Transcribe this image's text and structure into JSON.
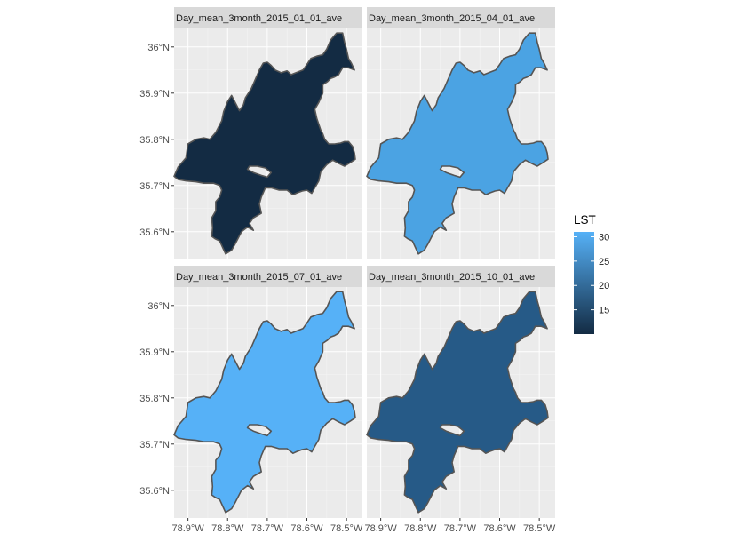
{
  "chart_data": {
    "type": "choropleth-facets",
    "facet_titles": [
      "Day_mean_3month_2015_01_01_ave",
      "Day_mean_3month_2015_04_01_ave",
      "Day_mean_3month_2015_07_01_ave",
      "Day_mean_3month_2015_10_01_ave"
    ],
    "facet_values": [
      10,
      27,
      30.5,
      19
    ],
    "fill_colors": [
      "#132B43",
      "#4BA3E3",
      "#56B1F7",
      "#265A87"
    ],
    "border_color": "#555555",
    "panel_background": "#EBEBEB",
    "strip_background": "#D9D9D9",
    "x_ticks": [
      "78.9°W",
      "78.8°W",
      "78.7°W",
      "78.6°W",
      "78.5°W"
    ],
    "x_tick_values": [
      -78.9,
      -78.8,
      -78.7,
      -78.6,
      -78.5
    ],
    "y_ticks": [
      "35.6°N",
      "35.7°N",
      "35.8°N",
      "35.9°N",
      "36°N"
    ],
    "y_tick_values": [
      35.6,
      35.7,
      35.8,
      35.9,
      36.0
    ],
    "xlim": [
      -78.935,
      -78.46
    ],
    "ylim": [
      35.54,
      36.04
    ],
    "legend": {
      "title": "LST",
      "breaks": [
        15,
        20,
        25,
        30
      ],
      "break_labels": [
        "15",
        "20",
        "25",
        "30"
      ],
      "range": [
        10,
        31
      ],
      "color_low": "#132B43",
      "color_high": "#56B1F7",
      "placement": "right"
    }
  }
}
